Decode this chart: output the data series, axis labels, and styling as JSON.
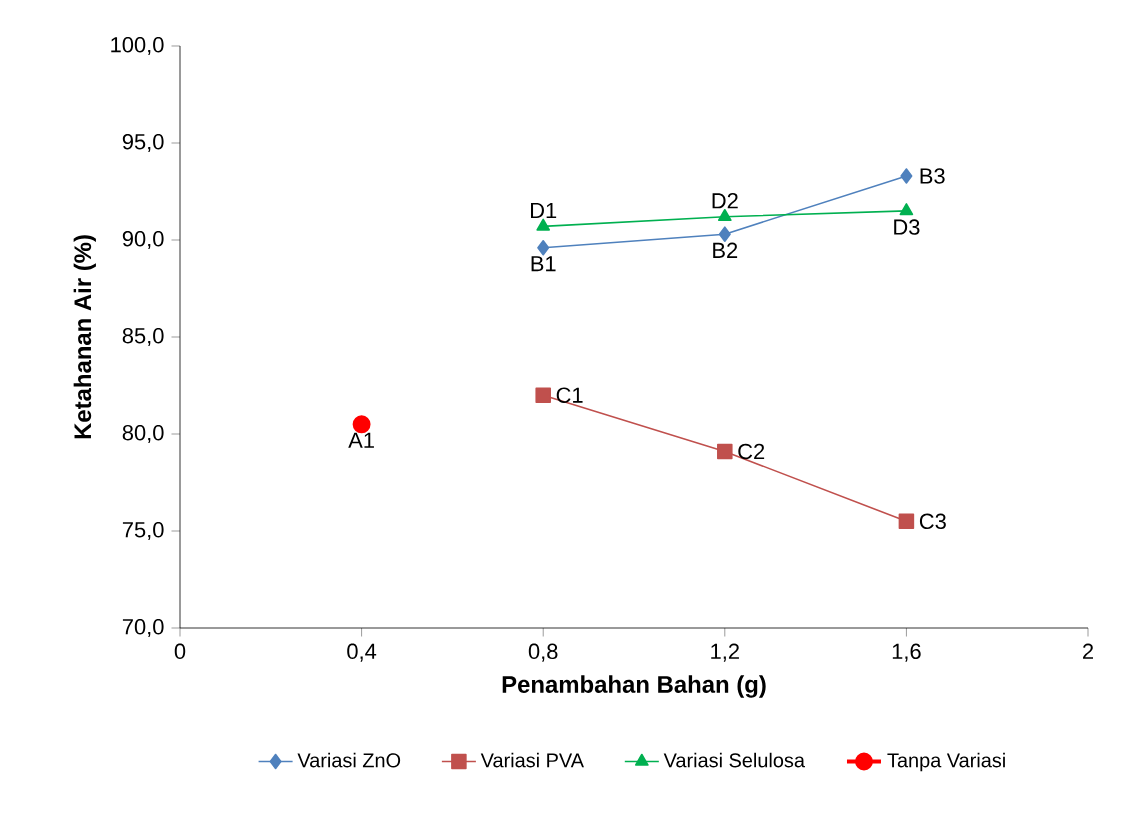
{
  "chart_data": {
    "type": "line",
    "xlabel": "Penambahan Bahan (g)",
    "ylabel": "Ketahanan Air (%)",
    "xlim": [
      0,
      2
    ],
    "xticks": [
      0,
      {
        "value": 0.4,
        "label": "0,4"
      },
      {
        "value": 0.8,
        "label": "0,8"
      },
      {
        "value": 1.2,
        "label": "1,2"
      },
      {
        "value": 1.6,
        "label": "1,6"
      },
      2
    ],
    "ylim": [
      70,
      100
    ],
    "yticks": [
      {
        "value": 70,
        "label": "70,0"
      },
      {
        "value": 75,
        "label": "75,0"
      },
      {
        "value": 80,
        "label": "80,0"
      },
      {
        "value": 85,
        "label": "85,0"
      },
      {
        "value": 90,
        "label": "90,0"
      },
      {
        "value": 95,
        "label": "95,0"
      },
      {
        "value": 100,
        "label": "100,0"
      }
    ],
    "grid": false,
    "legend": "bottom",
    "line_style": "solid",
    "series": [
      {
        "name": "Variasi ZnO",
        "color": "#4f81bd",
        "marker": "diamond",
        "x": [
          0.8,
          1.2,
          1.6
        ],
        "values": [
          89.6,
          90.3,
          93.3
        ]
      },
      {
        "name": "Variasi PVA",
        "color": "#c0504d",
        "marker": "square",
        "x": [
          0.8,
          1.2,
          1.6
        ],
        "values": [
          82.0,
          79.1,
          75.5
        ]
      },
      {
        "name": "Variasi Selulosa",
        "color": "#00b050",
        "marker": "triangle",
        "x": [
          0.8,
          1.2,
          1.6
        ],
        "values": [
          90.7,
          91.2,
          91.5
        ]
      },
      {
        "name": "Tanpa Variasi",
        "color": "#ff0000",
        "marker": "circle",
        "x": [
          0.4
        ],
        "values": [
          80.5
        ]
      }
    ],
    "annotations": [
      {
        "text": "A1",
        "x": 0.4,
        "y": 80.5
      },
      {
        "text": "B1",
        "x": 0.8,
        "y": 89.6
      },
      {
        "text": "B2",
        "x": 1.2,
        "y": 90.3
      },
      {
        "text": "B3",
        "x": 1.6,
        "y": 93.3
      },
      {
        "text": "C1",
        "x": 0.8,
        "y": 82.0
      },
      {
        "text": "C2",
        "x": 1.2,
        "y": 79.1
      },
      {
        "text": "C3",
        "x": 1.6,
        "y": 75.5
      },
      {
        "text": "D1",
        "x": 0.8,
        "y": 90.7
      },
      {
        "text": "D2",
        "x": 1.2,
        "y": 91.2
      },
      {
        "text": "D3",
        "x": 1.6,
        "y": 91.5
      }
    ]
  }
}
